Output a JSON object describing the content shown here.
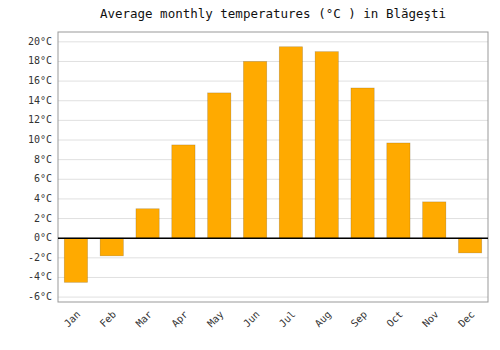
{
  "chart_data": {
    "type": "bar",
    "title": "Average monthly temperatures (°C ) in Blăgeşti",
    "categories": [
      "Jan",
      "Feb",
      "Mar",
      "Apr",
      "May",
      "Jun",
      "Jul",
      "Aug",
      "Sep",
      "Oct",
      "Nov",
      "Dec"
    ],
    "values": [
      -4.5,
      -1.8,
      3.0,
      9.5,
      14.8,
      18.0,
      19.5,
      19.0,
      15.3,
      9.7,
      3.7,
      -1.5
    ],
    "color": "#FFAA00",
    "ylim": [
      -6.5,
      21.0
    ],
    "yticks": [
      {
        "value": -6,
        "label": "-6°C"
      },
      {
        "value": -4,
        "label": "-4°C"
      },
      {
        "value": -2,
        "label": "-2°C"
      },
      {
        "value": 0,
        "label": "0°C"
      },
      {
        "value": 2,
        "label": "2°C"
      },
      {
        "value": 4,
        "label": "4°C"
      },
      {
        "value": 6,
        "label": "6°C"
      },
      {
        "value": 8,
        "label": "8°C"
      },
      {
        "value": 10,
        "label": "10°C"
      },
      {
        "value": 12,
        "label": "12°C"
      },
      {
        "value": 14,
        "label": "14°C"
      },
      {
        "value": 16,
        "label": "16°C"
      },
      {
        "value": 18,
        "label": "18°C"
      },
      {
        "value": 20,
        "label": "20°C"
      }
    ],
    "grid": true
  }
}
